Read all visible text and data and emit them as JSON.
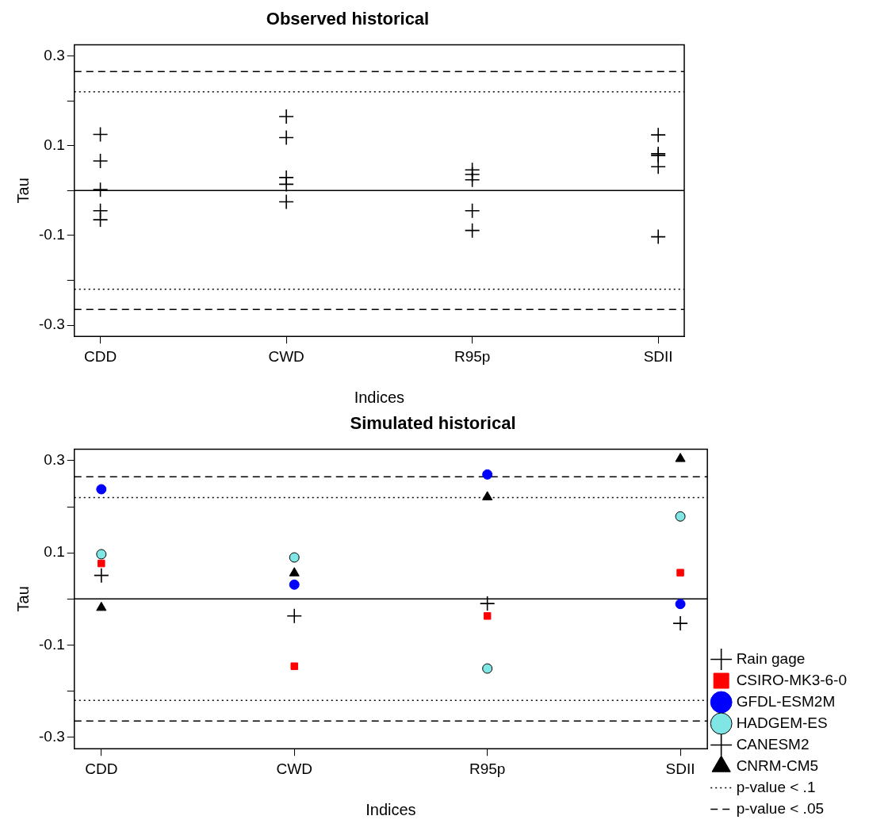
{
  "chart_data": [
    {
      "type": "scatter",
      "title": "Observed historical",
      "xlabel": "Indices",
      "ylabel": "Tau",
      "categories": [
        "CDD",
        "CWD",
        "R95p",
        "SDII"
      ],
      "marker": "cross",
      "legend": false,
      "grid": false,
      "ylim": [
        -0.325,
        0.325
      ],
      "yticks": [
        -0.3,
        {
          "value": -0.2,
          "label": null
        },
        -0.1,
        {
          "value": 0,
          "label": null
        },
        0.1,
        {
          "value": 0.2,
          "label": null
        },
        0.3
      ],
      "series": [
        {
          "color": "#000000",
          "values": [
            0.125,
            0.165,
            0.046,
            0.124
          ]
        },
        {
          "color": "#000000",
          "values": [
            0.066,
            0.118,
            0.036,
            0.082
          ]
        },
        {
          "color": "#000000",
          "values": [
            0.002,
            0.029,
            0.024,
            0.078
          ]
        },
        {
          "color": "#000000",
          "values": [
            -0.045,
            0.014,
            -0.045,
            0.053
          ]
        },
        {
          "color": "#000000",
          "values": [
            -0.065,
            -0.025,
            -0.089,
            -0.103
          ]
        }
      ],
      "ref_lines": [
        {
          "axis": "y",
          "value": 0,
          "line_style": "solid",
          "color": "#000000"
        },
        {
          "axis": "y",
          "value": 0.22,
          "line_style": "dotted",
          "color": "#000000"
        },
        {
          "axis": "y",
          "value": -0.22,
          "line_style": "dotted",
          "color": "#000000"
        },
        {
          "axis": "y",
          "value": 0.265,
          "line_style": "dashed",
          "color": "#000000"
        },
        {
          "axis": "y",
          "value": -0.265,
          "line_style": "dashed",
          "color": "#000000"
        }
      ]
    },
    {
      "type": "scatter",
      "title": "Simulated historical",
      "xlabel": "Indices",
      "ylabel": "Tau",
      "categories": [
        "CDD",
        "CWD",
        "R95p",
        "SDII"
      ],
      "legend": "right",
      "grid": false,
      "ylim": [
        -0.325,
        0.325
      ],
      "yticks": [
        -0.3,
        {
          "value": -0.2,
          "label": null
        },
        -0.1,
        {
          "value": 0,
          "label": null
        },
        0.1,
        {
          "value": 0.2,
          "label": null
        },
        0.3
      ],
      "series": [
        {
          "name": "Rain gage",
          "color": "#000000",
          "marker": "cross",
          "values": [
            null,
            null,
            null,
            null
          ]
        },
        {
          "name": "CSIRO-MK3-6-0",
          "color": "#ff0000",
          "marker": "square",
          "values": [
            0.077,
            -0.146,
            -0.037,
            0.057
          ]
        },
        {
          "name": "GFDL-ESM2M",
          "color": "#0000ff",
          "marker": "circle",
          "values": [
            0.238,
            0.031,
            0.27,
            -0.011
          ]
        },
        {
          "name": "HADGEM-ES",
          "color": "#7fe5e5",
          "marker": "circle",
          "values": [
            0.097,
            0.09,
            -0.151,
            0.179
          ]
        },
        {
          "name": "CANESM2",
          "color": "#000000",
          "marker": "cross",
          "values": [
            0.051,
            -0.037,
            -0.01,
            -0.053
          ]
        },
        {
          "name": "CNRM-CM5",
          "color": "#000000",
          "marker": "triangle",
          "values": [
            -0.019,
            0.056,
            0.221,
            0.304
          ]
        }
      ],
      "ref_lines": [
        {
          "axis": "y",
          "value": 0,
          "line_style": "solid",
          "color": "#000000"
        },
        {
          "axis": "y",
          "value": 0.22,
          "line_style": "dotted",
          "color": "#000000",
          "label": "p-value < .1"
        },
        {
          "axis": "y",
          "value": -0.22,
          "line_style": "dotted",
          "color": "#000000"
        },
        {
          "axis": "y",
          "value": 0.265,
          "line_style": "dashed",
          "color": "#000000",
          "label": "p-value < .05"
        },
        {
          "axis": "y",
          "value": -0.265,
          "line_style": "dashed",
          "color": "#000000"
        }
      ]
    }
  ]
}
